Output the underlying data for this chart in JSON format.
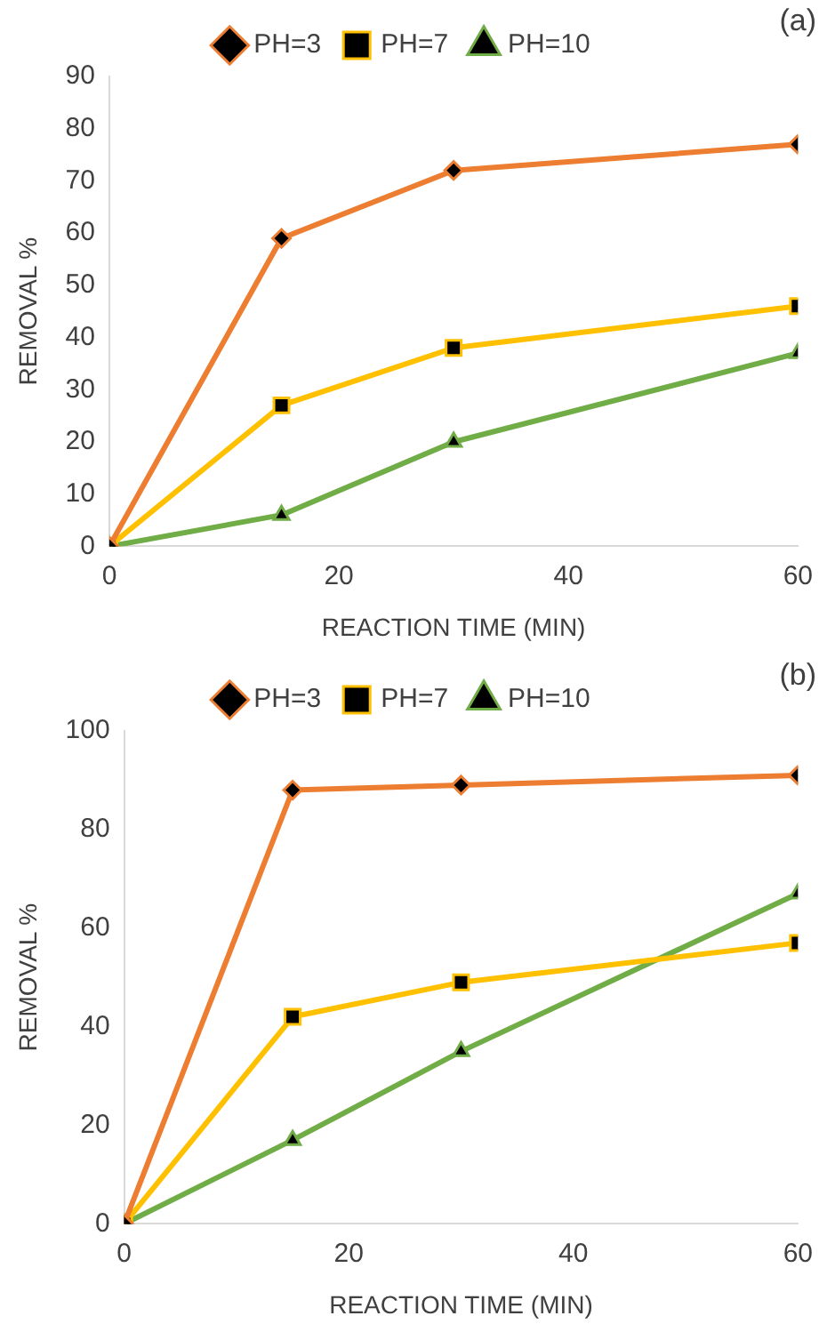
{
  "chart_data": [
    {
      "type": "line",
      "xlabel": "REACTION TIME (MIN)",
      "ylabel": "REMOVAL %",
      "annotations": [
        "(a)"
      ],
      "xlim": [
        0,
        60
      ],
      "xticks": [
        0,
        20,
        40,
        60
      ],
      "ylim": [
        0,
        90
      ],
      "yticks": [
        0,
        10,
        20,
        30,
        40,
        50,
        60,
        70,
        80,
        90
      ],
      "grid": false,
      "legend": "top",
      "x": [
        0,
        15,
        30,
        60
      ],
      "series": [
        {
          "name": "PH=3",
          "color": "#ed7d31",
          "marker": "diamond",
          "values": [
            0,
            59,
            72,
            77
          ]
        },
        {
          "name": "PH=7",
          "color": "#ffc000",
          "marker": "square",
          "values": [
            0,
            27,
            38,
            46
          ]
        },
        {
          "name": "PH=10",
          "color": "#70ad47",
          "marker": "triangle",
          "values": [
            0,
            6,
            20,
            37
          ]
        }
      ]
    },
    {
      "type": "line",
      "xlabel": "REACTION TIME (MIN)",
      "ylabel": "REMOVAL %",
      "annotations": [
        "(b)"
      ],
      "xlim": [
        0,
        60
      ],
      "xticks": [
        0,
        20,
        40,
        60
      ],
      "ylim": [
        0,
        100
      ],
      "yticks": [
        0,
        20,
        40,
        60,
        80,
        100
      ],
      "grid": false,
      "legend": "top",
      "x": [
        0,
        15,
        30,
        60
      ],
      "series": [
        {
          "name": "PH=3",
          "color": "#ed7d31",
          "marker": "diamond",
          "values": [
            0,
            88,
            89,
            91
          ]
        },
        {
          "name": "PH=7",
          "color": "#ffc000",
          "marker": "square",
          "values": [
            0,
            42,
            49,
            57
          ]
        },
        {
          "name": "PH=10",
          "color": "#70ad47",
          "marker": "triangle",
          "values": [
            0,
            17,
            35,
            67
          ]
        }
      ]
    }
  ]
}
